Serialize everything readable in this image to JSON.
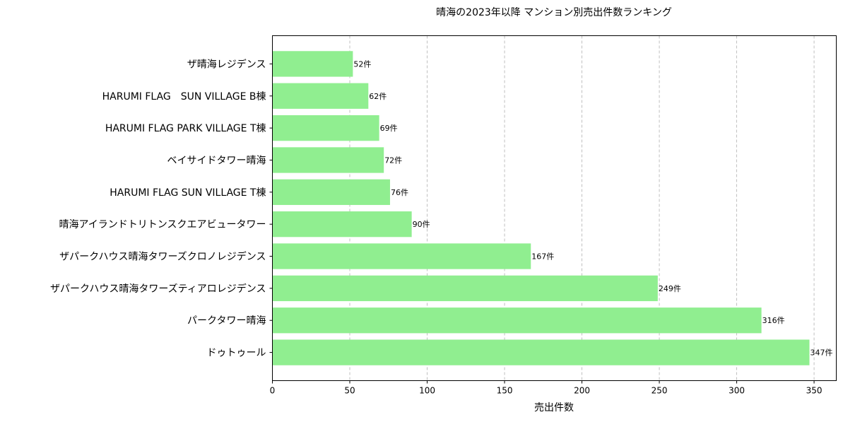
{
  "chart_data": {
    "type": "bar",
    "orientation": "horizontal",
    "title": "晴海の2023年以降 マンション別売出件数ランキング",
    "xlabel": "売出件数",
    "ylabel": "",
    "categories": [
      "ドゥトゥール",
      "パークタワー晴海",
      "ザパークハウス晴海タワーズティアロレジデンス",
      "ザパークハウス晴海タワーズクロノレジデンス",
      "晴海アイランドトリトンスクエアビュータワー",
      "HARUMI FLAG SUN VILLAGE T棟",
      "ベイサイドタワー晴海",
      "HARUMI FLAG PARK VILLAGE T棟",
      "HARUMI FLAG　SUN VILLAGE B棟",
      "ザ晴海レジデンス"
    ],
    "values": [
      347,
      316,
      249,
      167,
      90,
      76,
      72,
      69,
      62,
      52
    ],
    "data_labels": [
      "347件",
      "316件",
      "249件",
      "167件",
      "90件",
      "76件",
      "72件",
      "69件",
      "62件",
      "52件"
    ],
    "xlim": [
      0,
      364.35
    ],
    "xticks": [
      0,
      50,
      100,
      150,
      200,
      250,
      300,
      350
    ],
    "xtick_labels": [
      "0",
      "50",
      "100",
      "150",
      "200",
      "250",
      "300",
      "350"
    ],
    "grid": "x, dashed",
    "bar_color": "#90ee90"
  }
}
